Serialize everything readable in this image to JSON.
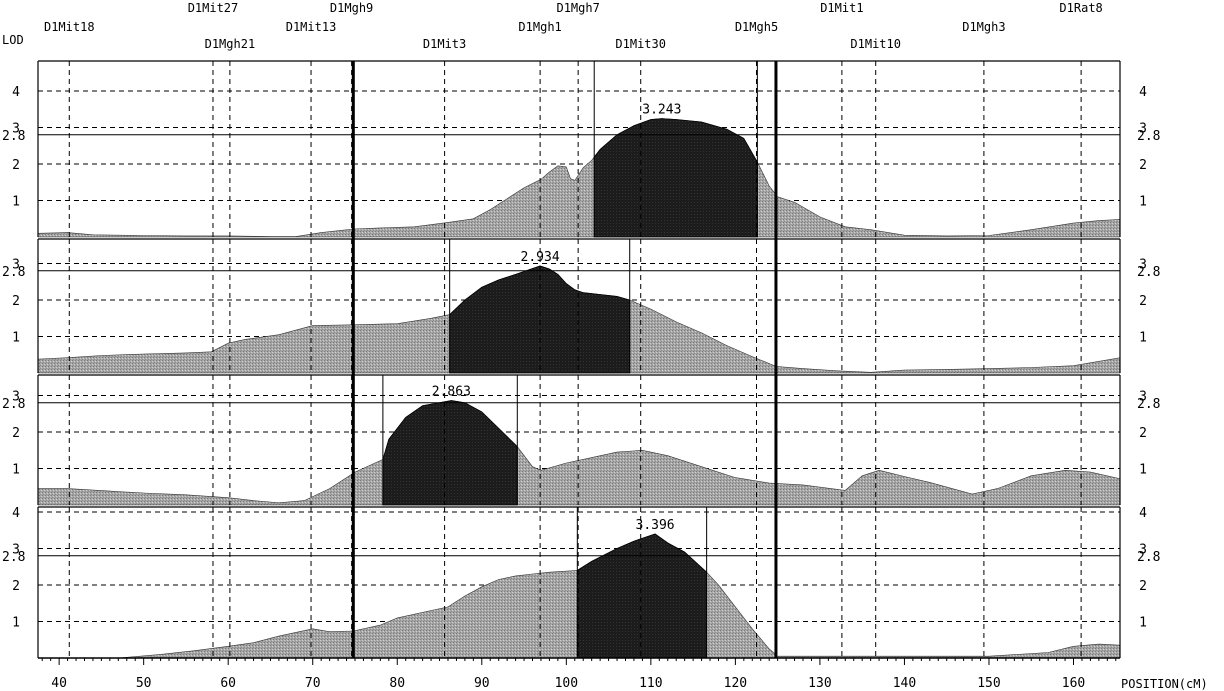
{
  "chart_data": {
    "type": "area",
    "ylabel": "LOD",
    "xlabel": "POSITION(cM)",
    "xlim": [
      37.5,
      165.5
    ],
    "ylim": [
      0,
      4.85
    ],
    "x_ticks": [
      40,
      50,
      60,
      70,
      80,
      90,
      100,
      110,
      120,
      130,
      140,
      150,
      160
    ],
    "y_ticks": [
      1,
      2,
      3,
      4
    ],
    "threshold": 2.8,
    "threshold_label": "2.8",
    "boundary_lines_cm": [
      74.8,
      124.8
    ],
    "grid": true,
    "markers": [
      {
        "name": "D1Mit18",
        "pos": 41.2,
        "row": 1
      },
      {
        "name": "D1Mit27",
        "pos": 58.2,
        "row": 0
      },
      {
        "name": "D1Mgh21",
        "pos": 60.2,
        "row": 2
      },
      {
        "name": "D1Mit13",
        "pos": 69.8,
        "row": 1
      },
      {
        "name": "D1Mgh9",
        "pos": 74.6,
        "row": 0
      },
      {
        "name": "D1Mit3",
        "pos": 85.6,
        "row": 2
      },
      {
        "name": "D1Mgh1",
        "pos": 96.9,
        "row": 1
      },
      {
        "name": "D1Mgh7",
        "pos": 101.4,
        "row": 0
      },
      {
        "name": "D1Mit30",
        "pos": 108.8,
        "row": 2
      },
      {
        "name": "D1Mgh5",
        "pos": 122.5,
        "row": 1
      },
      {
        "name": "D1Mit1",
        "pos": 132.6,
        "row": 0
      },
      {
        "name": "D1Mit10",
        "pos": 136.6,
        "row": 2
      },
      {
        "name": "D1Mgh3",
        "pos": 149.4,
        "row": 1
      },
      {
        "name": "D1Rat8",
        "pos": 160.9,
        "row": 0
      }
    ],
    "panels": [
      {
        "peak_label": "3.243",
        "peak_cm": 111.3,
        "support_interval": [
          103.3,
          122.6
        ],
        "y_ticks_left": [
          "1",
          "2",
          "3",
          "4"
        ],
        "y_ticks_right": [
          "1",
          "2",
          "3",
          "4"
        ],
        "series": [
          [
            37.5,
            0.1
          ],
          [
            41,
            0.12
          ],
          [
            44,
            0.06
          ],
          [
            50,
            0.04
          ],
          [
            55,
            0.03
          ],
          [
            60,
            0.03
          ],
          [
            65,
            0.01
          ],
          [
            68,
            0.01
          ],
          [
            71,
            0.12
          ],
          [
            74.8,
            0.22
          ],
          [
            78,
            0.25
          ],
          [
            82,
            0.28
          ],
          [
            86,
            0.4
          ],
          [
            89,
            0.5
          ],
          [
            91,
            0.75
          ],
          [
            93,
            1.05
          ],
          [
            95,
            1.35
          ],
          [
            97,
            1.58
          ],
          [
            98,
            1.78
          ],
          [
            99,
            1.95
          ],
          [
            100,
            1.92
          ],
          [
            100.5,
            1.6
          ],
          [
            101,
            1.55
          ],
          [
            102,
            1.9
          ],
          [
            103,
            2.1
          ],
          [
            104,
            2.4
          ],
          [
            106,
            2.8
          ],
          [
            108,
            3.05
          ],
          [
            110,
            3.22
          ],
          [
            111.3,
            3.243
          ],
          [
            113,
            3.22
          ],
          [
            116,
            3.15
          ],
          [
            119,
            2.95
          ],
          [
            121,
            2.7
          ],
          [
            122.6,
            2.05
          ],
          [
            124,
            1.4
          ],
          [
            125,
            1.1
          ],
          [
            127,
            0.95
          ],
          [
            130,
            0.55
          ],
          [
            133,
            0.28
          ],
          [
            136,
            0.2
          ],
          [
            140,
            0.05
          ],
          [
            145,
            0.03
          ],
          [
            150,
            0.04
          ],
          [
            155,
            0.2
          ],
          [
            160,
            0.38
          ],
          [
            163,
            0.45
          ],
          [
            165.5,
            0.48
          ]
        ]
      },
      {
        "peak_label": "2.934",
        "peak_cm": 96.9,
        "support_interval": [
          86.2,
          107.5
        ],
        "y_ticks_left": [
          "1",
          "2",
          "3"
        ],
        "y_ticks_right": [
          "1",
          "2",
          "3"
        ],
        "series": [
          [
            37.5,
            0.38
          ],
          [
            41,
            0.42
          ],
          [
            45,
            0.48
          ],
          [
            50,
            0.52
          ],
          [
            55,
            0.55
          ],
          [
            58,
            0.58
          ],
          [
            60,
            0.82
          ],
          [
            62,
            0.92
          ],
          [
            66,
            1.05
          ],
          [
            70,
            1.3
          ],
          [
            74.8,
            1.32
          ],
          [
            80,
            1.35
          ],
          [
            84,
            1.5
          ],
          [
            86.2,
            1.6
          ],
          [
            88,
            2.0
          ],
          [
            90,
            2.35
          ],
          [
            92,
            2.55
          ],
          [
            94,
            2.7
          ],
          [
            96.9,
            2.934
          ],
          [
            98,
            2.85
          ],
          [
            99,
            2.7
          ],
          [
            100,
            2.45
          ],
          [
            101,
            2.28
          ],
          [
            102,
            2.2
          ],
          [
            104,
            2.15
          ],
          [
            106,
            2.1
          ],
          [
            107.5,
            2.0
          ],
          [
            110,
            1.75
          ],
          [
            113,
            1.4
          ],
          [
            116,
            1.1
          ],
          [
            119,
            0.75
          ],
          [
            122,
            0.45
          ],
          [
            124.8,
            0.18
          ],
          [
            128,
            0.12
          ],
          [
            132,
            0.06
          ],
          [
            136,
            0.02
          ],
          [
            140,
            0.08
          ],
          [
            145,
            0.1
          ],
          [
            150,
            0.12
          ],
          [
            155,
            0.15
          ],
          [
            160,
            0.2
          ],
          [
            165.5,
            0.42
          ]
        ]
      },
      {
        "peak_label": "2.863",
        "peak_cm": 86.4,
        "support_interval": [
          78.3,
          94.2
        ],
        "y_ticks_left": [
          "1",
          "2",
          "3"
        ],
        "y_ticks_right": [
          "1",
          "2",
          "3"
        ],
        "series": [
          [
            37.5,
            0.45
          ],
          [
            41,
            0.45
          ],
          [
            46,
            0.38
          ],
          [
            50,
            0.33
          ],
          [
            55,
            0.28
          ],
          [
            60,
            0.2
          ],
          [
            63,
            0.12
          ],
          [
            66,
            0.06
          ],
          [
            69,
            0.12
          ],
          [
            72,
            0.45
          ],
          [
            75,
            0.9
          ],
          [
            78.3,
            1.25
          ],
          [
            79,
            1.8
          ],
          [
            81,
            2.4
          ],
          [
            83,
            2.72
          ],
          [
            86.4,
            2.863
          ],
          [
            88,
            2.8
          ],
          [
            90,
            2.55
          ],
          [
            92,
            2.1
          ],
          [
            94.2,
            1.6
          ],
          [
            96,
            1.05
          ],
          [
            97,
            0.95
          ],
          [
            100,
            1.15
          ],
          [
            103,
            1.3
          ],
          [
            106,
            1.45
          ],
          [
            109,
            1.5
          ],
          [
            112,
            1.35
          ],
          [
            116,
            1.05
          ],
          [
            120,
            0.75
          ],
          [
            124,
            0.6
          ],
          [
            128,
            0.55
          ],
          [
            133,
            0.4
          ],
          [
            135,
            0.8
          ],
          [
            137,
            0.95
          ],
          [
            140,
            0.78
          ],
          [
            143,
            0.62
          ],
          [
            148,
            0.3
          ],
          [
            151,
            0.45
          ],
          [
            155,
            0.8
          ],
          [
            159,
            0.95
          ],
          [
            162,
            0.9
          ],
          [
            165.5,
            0.72
          ]
        ]
      },
      {
        "peak_label": "3.396",
        "peak_cm": 110.5,
        "support_interval": [
          101.3,
          116.6
        ],
        "y_ticks_left": [
          "1",
          "2",
          "3",
          "4"
        ],
        "y_ticks_right": [
          "1",
          "2",
          "3",
          "4"
        ],
        "series": [
          [
            37.5,
            0.0
          ],
          [
            47,
            0.0
          ],
          [
            52,
            0.1
          ],
          [
            56,
            0.2
          ],
          [
            60,
            0.32
          ],
          [
            63,
            0.42
          ],
          [
            66,
            0.6
          ],
          [
            70,
            0.8
          ],
          [
            72,
            0.72
          ],
          [
            74.8,
            0.74
          ],
          [
            78,
            0.9
          ],
          [
            80,
            1.1
          ],
          [
            84,
            1.3
          ],
          [
            86,
            1.4
          ],
          [
            88,
            1.7
          ],
          [
            90,
            1.95
          ],
          [
            92,
            2.15
          ],
          [
            94,
            2.25
          ],
          [
            96,
            2.3
          ],
          [
            98,
            2.35
          ],
          [
            101.3,
            2.4
          ],
          [
            103,
            2.65
          ],
          [
            106,
            3.0
          ],
          [
            108,
            3.2
          ],
          [
            110.5,
            3.396
          ],
          [
            112,
            3.15
          ],
          [
            114,
            2.9
          ],
          [
            116.6,
            2.35
          ],
          [
            118,
            2.0
          ],
          [
            120,
            1.4
          ],
          [
            122,
            0.8
          ],
          [
            124,
            0.25
          ],
          [
            125,
            0.05
          ],
          [
            130,
            0.05
          ],
          [
            135,
            0.05
          ],
          [
            140,
            0.05
          ],
          [
            150,
            0.05
          ],
          [
            157,
            0.15
          ],
          [
            160,
            0.32
          ],
          [
            163,
            0.38
          ],
          [
            165.5,
            0.35
          ]
        ]
      }
    ]
  }
}
